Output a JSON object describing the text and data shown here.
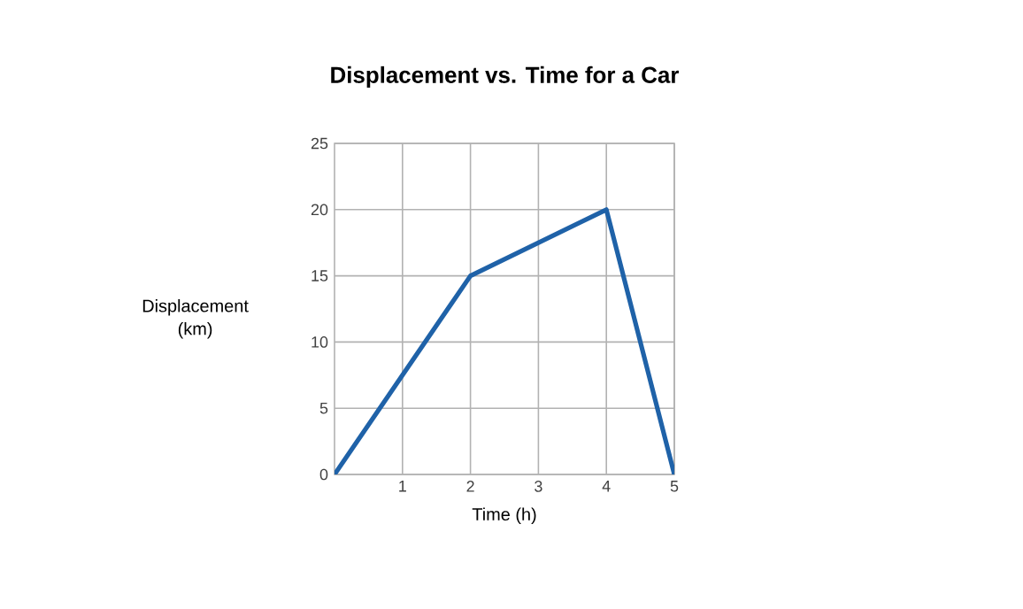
{
  "chart_data": {
    "type": "line",
    "title": "Displacement vs. Time for a Car",
    "xlabel": "Time (h)",
    "ylabel": "Displacement (km)",
    "x": [
      0,
      2,
      4,
      5
    ],
    "series": [
      {
        "color": "#1f62a8",
        "values": [
          0,
          15,
          20,
          0
        ]
      }
    ],
    "xlim": [
      0,
      5
    ],
    "ylim": [
      0,
      25
    ],
    "xticks": [
      1,
      2,
      3,
      4,
      5
    ],
    "yticks": [
      0,
      5,
      10,
      15,
      20,
      25
    ],
    "grid": true,
    "marker": "none",
    "line_style": "solid"
  }
}
